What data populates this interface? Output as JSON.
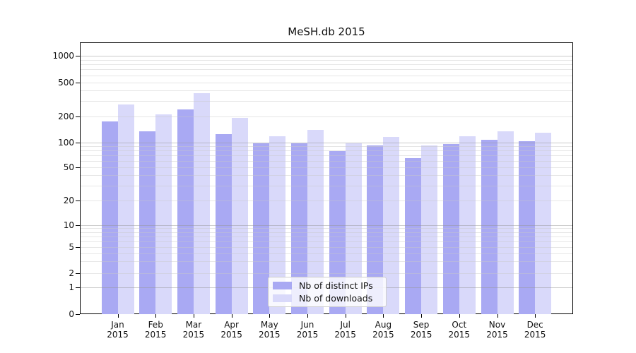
{
  "title": "MeSH.db 2015",
  "year": "2015",
  "y_axis": {
    "tick_labels": [
      "0",
      "1",
      "2",
      "5",
      "10",
      "20",
      "50",
      "100",
      "200",
      "500",
      "1000"
    ]
  },
  "x_axis": {
    "months": [
      "Jan",
      "Feb",
      "Mar",
      "Apr",
      "May",
      "Jun",
      "Jul",
      "Aug",
      "Sep",
      "Oct",
      "Nov",
      "Dec"
    ]
  },
  "legend": {
    "items": [
      {
        "label": "Nb of distinct IPs",
        "color": "#a9a9f3"
      },
      {
        "label": "Nb of downloads",
        "color": "#d9d9fa"
      }
    ]
  },
  "chart_data": {
    "type": "bar",
    "title": "MeSH.db 2015",
    "categories": [
      "Jan 2015",
      "Feb 2015",
      "Mar 2015",
      "Apr 2015",
      "May 2015",
      "Jun 2015",
      "Jul 2015",
      "Aug 2015",
      "Sep 2015",
      "Oct 2015",
      "Nov 2015",
      "Dec 2015"
    ],
    "series": [
      {
        "name": "Nb of distinct IPs",
        "color": "#a9a9f3",
        "values": [
          175,
          135,
          240,
          125,
          98,
          97,
          79,
          92,
          65,
          96,
          107,
          103
        ]
      },
      {
        "name": "Nb of downloads",
        "color": "#d9d9fa",
        "values": [
          273,
          211,
          375,
          192,
          117,
          140,
          98,
          116,
          91,
          118,
          133,
          130
        ]
      }
    ],
    "xlabel": "",
    "ylabel": "",
    "yscale": "symlog",
    "yticks": [
      0,
      1,
      2,
      5,
      10,
      20,
      50,
      100,
      200,
      500,
      1000
    ],
    "ylim": [
      0,
      1400
    ],
    "grid": true,
    "legend_position": "lower center"
  }
}
